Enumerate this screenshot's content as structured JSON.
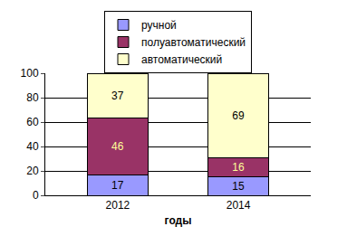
{
  "chart_data": {
    "type": "bar",
    "stacked": true,
    "data_labels": true,
    "grid": true,
    "legend": "top",
    "x_label": "годы",
    "categories": [
      "2012",
      "2014"
    ],
    "series": [
      {
        "name": "ручной",
        "color": "#9999ff",
        "values": [
          17,
          15
        ]
      },
      {
        "name": "полуавтоматический",
        "color": "#993366",
        "values": [
          46,
          16
        ]
      },
      {
        "name": "автоматический",
        "color": "#ffffcc",
        "values": [
          37,
          69
        ]
      }
    ],
    "ylim": [
      0,
      100
    ],
    "yticks": [
      0,
      20,
      40,
      60,
      80,
      100
    ]
  }
}
